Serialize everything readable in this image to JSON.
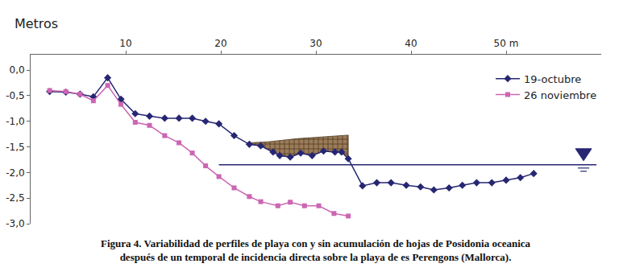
{
  "chart_data": {
    "type": "line",
    "title": "Metros",
    "caption": [
      "Figura 4. Variabilidad de perfiles de playa con y sin acumulación de hojas de Posidonia oceanica",
      "después de un temporal de incidencia directa sobre la playa de es Perengons (Mallorca)."
    ],
    "xlim": [
      0,
      60
    ],
    "xticks": [
      10,
      20,
      30,
      40,
      {
        "value": 50,
        "label": "50 m"
      }
    ],
    "ylim": [
      -3.0,
      0.3
    ],
    "yticks": [
      {
        "value": 0,
        "label": "0,0"
      },
      {
        "value": -0.5,
        "label": "-0,5"
      },
      {
        "value": -1.0,
        "label": "-1,0"
      },
      {
        "value": -1.5,
        "label": "-1,5"
      },
      {
        "value": -2.0,
        "label": "-2,0"
      },
      {
        "value": -2.5,
        "label": "-2,5"
      },
      {
        "value": -3.0,
        "label": "-3,0"
      }
    ],
    "grid": false,
    "legend": "top right",
    "series": [
      {
        "name": "19-octubre",
        "color": "#262673",
        "marker": "diamond",
        "line_style": "solid",
        "x": [
          2.0,
          3.7,
          5.2,
          6.6,
          8.1,
          9.5,
          11.0,
          12.5,
          14.1,
          15.6,
          17.0,
          18.4,
          19.8,
          21.4,
          23.0,
          24.2,
          25.5,
          26.2,
          27.3,
          28.4,
          29.6,
          30.8,
          32.0,
          32.7,
          33.4,
          34.9,
          36.4,
          37.9,
          39.5,
          41.0,
          42.4,
          44.0,
          45.4,
          46.9,
          48.5,
          50.0,
          51.5,
          52.9
        ],
        "values": [
          -0.42,
          -0.43,
          -0.47,
          -0.52,
          -0.15,
          -0.57,
          -0.85,
          -0.9,
          -0.94,
          -0.94,
          -0.94,
          -1.0,
          -1.05,
          -1.28,
          -1.45,
          -1.48,
          -1.6,
          -1.67,
          -1.7,
          -1.62,
          -1.67,
          -1.58,
          -1.6,
          -1.6,
          -1.73,
          -2.26,
          -2.2,
          -2.2,
          -2.25,
          -2.28,
          -2.34,
          -2.3,
          -2.25,
          -2.2,
          -2.2,
          -2.15,
          -2.1,
          -2.02
        ]
      },
      {
        "name": "26 noviembre",
        "color": "#cc66b3",
        "marker": "square",
        "line_style": "solid",
        "x": [
          2.0,
          3.7,
          5.2,
          6.6,
          8.1,
          9.5,
          11.0,
          12.5,
          14.1,
          15.6,
          17.0,
          18.4,
          19.8,
          21.4,
          23.0,
          24.2,
          26.0,
          27.3,
          28.8,
          30.3,
          31.9,
          33.4
        ],
        "values": [
          -0.4,
          -0.42,
          -0.47,
          -0.6,
          -0.3,
          -0.67,
          -1.02,
          -1.08,
          -1.28,
          -1.42,
          -1.62,
          -1.87,
          -2.08,
          -2.3,
          -2.47,
          -2.57,
          -2.65,
          -2.58,
          -2.65,
          -2.65,
          -2.8,
          -2.85
        ]
      }
    ],
    "areas": [
      {
        "x": [
          23.0,
          25.0,
          28.0,
          31.0,
          33.4
        ],
        "top": [
          -1.42,
          -1.4,
          -1.34,
          -1.3,
          -1.27
        ],
        "color": "#9c7c58"
      }
    ],
    "water_level": {
      "y": -1.85,
      "x": [
        19.8,
        59.5
      ],
      "color": "#262673"
    }
  }
}
